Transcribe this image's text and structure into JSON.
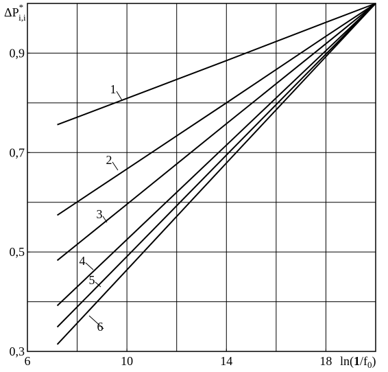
{
  "chart_data": {
    "type": "line",
    "ylabel": {
      "base": "ΔP",
      "sup": "*",
      "sub": "i,i"
    },
    "xlabel": {
      "pre": "ln(",
      "bold": "1",
      "mid": "/f",
      "sub": "0",
      "post": ")"
    },
    "x": [
      7.2,
      10,
      14,
      18,
      20
    ],
    "series": [
      {
        "name": "1",
        "color": "#000000",
        "values": [
          0.756,
          0.809,
          0.885,
          0.962,
          1.0
        ]
      },
      {
        "name": "2",
        "color": "#000000",
        "values": [
          0.574,
          0.667,
          0.8,
          0.934,
          1.0
        ]
      },
      {
        "name": "3",
        "color": "#000000",
        "values": [
          0.483,
          0.596,
          0.758,
          0.919,
          1.0
        ]
      },
      {
        "name": "4",
        "color": "#000000",
        "values": [
          0.392,
          0.525,
          0.715,
          0.905,
          1.0
        ]
      },
      {
        "name": "5",
        "color": "#000000",
        "values": [
          0.349,
          0.491,
          0.695,
          0.898,
          1.0
        ]
      },
      {
        "name": "6",
        "color": "#000000",
        "values": [
          0.314,
          0.464,
          0.679,
          0.893,
          1.0
        ]
      }
    ],
    "xlim": [
      6,
      20
    ],
    "ylim": [
      0.3,
      1.0
    ],
    "xticks": [
      6,
      10,
      14,
      18
    ],
    "yticks": [
      {
        "value": 0.3,
        "label": "0,3"
      },
      {
        "value": 0.5,
        "label": "0,5"
      },
      {
        "value": 0.7,
        "label": "0,7"
      },
      {
        "value": 0.9,
        "label": "0,9"
      }
    ],
    "xgrid": [
      8,
      10,
      12,
      14,
      16,
      18
    ],
    "ygrid": [
      0.4,
      0.5,
      0.6,
      0.7,
      0.8,
      0.9
    ],
    "grid": true
  }
}
